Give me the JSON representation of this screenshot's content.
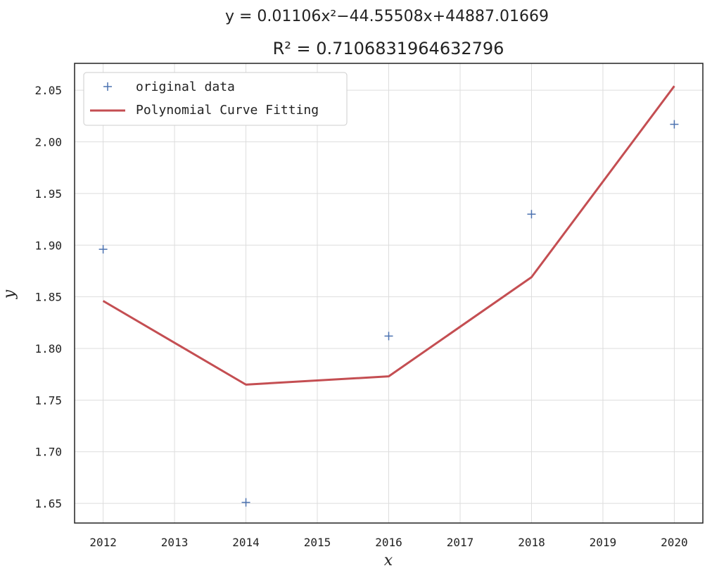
{
  "chart_data": {
    "type": "scatter",
    "title_line1": "y = 0.01106x²−44.55508x+44887.01669",
    "title_line2": "R² = 0.7106831964632796",
    "xlabel": "x",
    "ylabel": "y",
    "xlim": [
      2011.6,
      2020.4
    ],
    "ylim": [
      1.631,
      2.076
    ],
    "xticks": [
      2012,
      2013,
      2014,
      2015,
      2016,
      2017,
      2018,
      2019,
      2020
    ],
    "yticks": [
      1.65,
      1.7,
      1.75,
      1.8,
      1.85,
      1.9,
      1.95,
      2.0,
      2.05
    ],
    "ytick_labels": [
      "1.65",
      "1.70",
      "1.75",
      "1.80",
      "1.85",
      "1.90",
      "1.95",
      "2.00",
      "2.05"
    ],
    "grid": true,
    "legend_position": "top-left",
    "series": [
      {
        "name": "original data",
        "kind": "marker",
        "marker": "+",
        "color": "#4c72b0",
        "x": [
          2012,
          2014,
          2016,
          2018,
          2020
        ],
        "y": [
          1.896,
          1.651,
          1.812,
          1.93,
          2.017
        ]
      },
      {
        "name": "Polynomial Curve Fitting",
        "kind": "line",
        "color": "#c44e52",
        "x": [
          2012,
          2014,
          2016,
          2018,
          2020
        ],
        "y": [
          1.846,
          1.765,
          1.773,
          1.869,
          2.054
        ]
      }
    ]
  }
}
